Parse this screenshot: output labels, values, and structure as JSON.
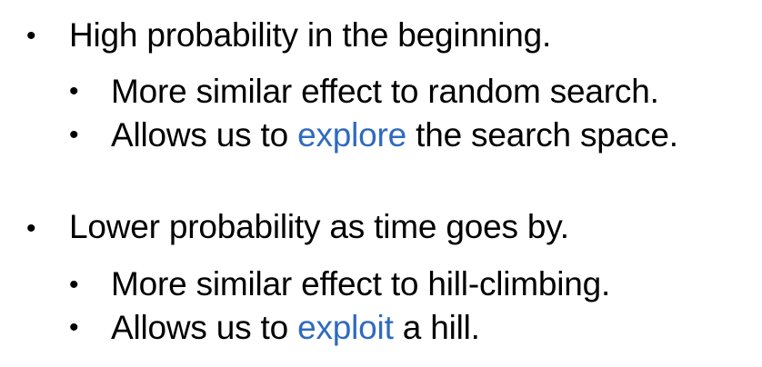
{
  "groups": [
    {
      "main": "High probability in the beginning.",
      "subs": [
        {
          "pre": "More similar effect to random search.",
          "highlight": "",
          "post": ""
        },
        {
          "pre": "Allows us to ",
          "highlight": "explore",
          "post": " the search space."
        }
      ]
    },
    {
      "main": "Lower probability as time goes by.",
      "subs": [
        {
          "pre": "More similar effect to hill-climbing.",
          "highlight": "",
          "post": ""
        },
        {
          "pre": "Allows us to ",
          "highlight": "exploit",
          "post": " a hill."
        }
      ]
    }
  ],
  "colors": {
    "text": "#000000",
    "highlight": "#2f6bbf",
    "background": "#ffffff"
  }
}
